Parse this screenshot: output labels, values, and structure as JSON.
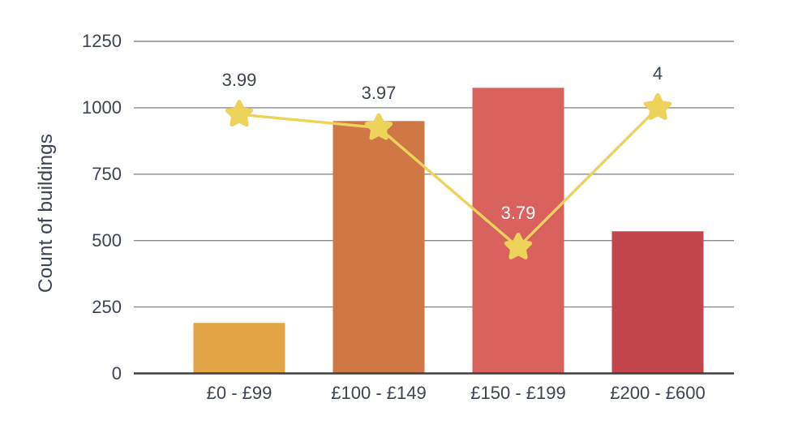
{
  "chart_data": {
    "type": "bar",
    "categories": [
      "£0 - £99",
      "£100 - £149",
      "£150 - £199",
      "£200 - £600"
    ],
    "series": [
      {
        "type": "bar",
        "values": [
          190,
          950,
          1075,
          535
        ],
        "bar_colors": [
          "#E2A444",
          "#D07845",
          "#D9615E",
          "#C4464D"
        ]
      },
      {
        "type": "line",
        "marker": "star",
        "values": [
          3.99,
          3.97,
          3.79,
          4
        ],
        "point_labels": [
          "3.99",
          "3.97",
          "3.79",
          "4"
        ],
        "point_label_colors": [
          "#3B4354",
          "#3B4354",
          "#FFFFFF",
          "#3B4354"
        ],
        "color": "#EED35A",
        "secondary_axis": {
          "min": 3.6,
          "max": 4.1,
          "visible": false
        }
      }
    ],
    "title": "",
    "xlabel": "",
    "ylabel": "Count of buildings",
    "ylim": [
      0,
      1250
    ],
    "yticks": [
      0,
      250,
      500,
      750,
      1000,
      1250
    ],
    "ytick_labels": [
      "0",
      "250",
      "500",
      "750",
      "1000",
      "1250"
    ],
    "grid": true,
    "legend": false,
    "colors": {
      "gridline": "#8A8A8A",
      "axis_line": "#3E3E3E",
      "text": "#3B4354",
      "background": "#FFFFFF"
    }
  }
}
